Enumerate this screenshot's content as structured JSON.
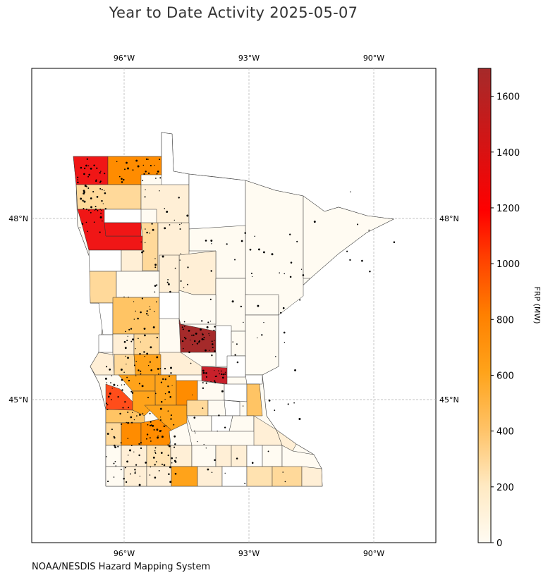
{
  "title": "Year to Date Activity 2025-05-07",
  "credit": "NOAA/NESDIS Hazard Mapping System",
  "map": {
    "region": "Minnesota counties",
    "longitude_ticks": [
      "96°W",
      "93°W",
      "90°W"
    ],
    "latitude_ticks": [
      "48°N",
      "45°N"
    ],
    "gridlines": true
  },
  "colorbar": {
    "label": "FRP (MW)",
    "ticks": [
      "0",
      "200",
      "400",
      "600",
      "800",
      "1000",
      "1200",
      "1400",
      "1600"
    ],
    "range": [
      0,
      1700
    ],
    "colors": [
      "#fffbf2",
      "#ffe9c2",
      "#ffc266",
      "#ffa31a",
      "#ff8000",
      "#ff4000",
      "#ff0000",
      "#d41414",
      "#a52a2a"
    ]
  }
}
